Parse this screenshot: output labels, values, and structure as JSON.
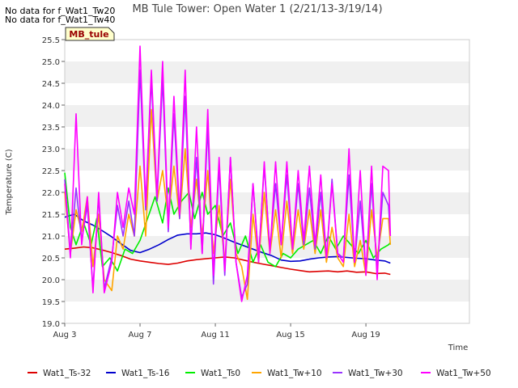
{
  "notes": [
    "No data for f_Wat1_Tw20",
    "No data for f_Wat1_Tw40"
  ],
  "badge": "MB_tule",
  "chart_data": {
    "type": "line",
    "title": "MB Tule Tower: Open Water 1 (2/21/13-3/19/14)",
    "xlabel": "Time",
    "ylabel": "Temperature (C)",
    "xlim": [
      0,
      21.5
    ],
    "ylim": [
      19.0,
      25.5
    ],
    "x_ticks": [
      {
        "x": 0,
        "label": "Aug 3"
      },
      {
        "x": 4,
        "label": "Aug 7"
      },
      {
        "x": 8,
        "label": "Aug 11"
      },
      {
        "x": 12,
        "label": "Aug 15"
      },
      {
        "x": 16,
        "label": "Aug 19"
      }
    ],
    "y_ticks": [
      19.0,
      19.5,
      20.0,
      20.5,
      21.0,
      21.5,
      22.0,
      22.5,
      23.0,
      23.5,
      24.0,
      24.5,
      25.0,
      25.5
    ],
    "grid": "horizontal-bands",
    "legend_position": "bottom",
    "series": [
      {
        "name": "Wat1_Ts-32",
        "color": "#dd0000",
        "x": [
          0,
          0.5,
          1,
          1.5,
          2,
          2.5,
          3,
          3.5,
          4,
          4.5,
          5,
          5.5,
          6,
          6.5,
          7,
          7.5,
          8,
          8.5,
          9,
          9.5,
          10,
          10.5,
          11,
          11.5,
          12,
          12.5,
          13,
          13.5,
          14,
          14.5,
          15,
          15.5,
          16,
          16.5,
          17,
          17.3
        ],
        "y": [
          20.7,
          20.72,
          20.75,
          20.73,
          20.68,
          20.62,
          20.55,
          20.47,
          20.43,
          20.4,
          20.37,
          20.35,
          20.38,
          20.43,
          20.46,
          20.48,
          20.5,
          20.52,
          20.5,
          20.45,
          20.4,
          20.36,
          20.32,
          20.28,
          20.24,
          20.21,
          20.18,
          20.19,
          20.2,
          20.18,
          20.2,
          20.17,
          20.18,
          20.14,
          20.15,
          20.12
        ]
      },
      {
        "name": "Wat1_Ts-16",
        "color": "#0000cc",
        "x": [
          0,
          0.5,
          1,
          1.5,
          2,
          2.5,
          3,
          3.5,
          4,
          4.5,
          5,
          5.5,
          6,
          6.5,
          7,
          7.5,
          8,
          8.5,
          9,
          9.5,
          10,
          10.5,
          11,
          11.5,
          12,
          12.5,
          13,
          13.5,
          14,
          14.5,
          15,
          15.5,
          16,
          16.5,
          17,
          17.3
        ],
        "y": [
          21.43,
          21.5,
          21.35,
          21.25,
          21.12,
          20.98,
          20.82,
          20.67,
          20.62,
          20.7,
          20.8,
          20.92,
          21.02,
          21.05,
          21.05,
          21.07,
          21.03,
          20.95,
          20.86,
          20.78,
          20.7,
          20.62,
          20.55,
          20.45,
          20.42,
          20.43,
          20.47,
          20.5,
          20.52,
          20.53,
          20.51,
          20.49,
          20.48,
          20.45,
          20.43,
          20.38
        ]
      },
      {
        "name": "Wat1_Ts0",
        "color": "#00ee00",
        "x": [
          0,
          0.3,
          0.6,
          1,
          1.4,
          1.7,
          2,
          2.4,
          2.8,
          3.2,
          3.6,
          4,
          4.4,
          4.8,
          5.2,
          5.5,
          5.8,
          6.2,
          6.6,
          6.9,
          7.3,
          7.6,
          8,
          8.4,
          8.8,
          9.2,
          9.6,
          10,
          10.4,
          10.8,
          11.2,
          11.6,
          12,
          12.4,
          12.8,
          13.2,
          13.6,
          14,
          14.4,
          14.8,
          15.2,
          15.6,
          16,
          16.4,
          16.8,
          17.2,
          17.3
        ],
        "y": [
          22.45,
          21.2,
          20.8,
          21.3,
          20.8,
          21.4,
          20.3,
          20.5,
          20.2,
          20.7,
          20.6,
          20.9,
          21.4,
          21.9,
          21.3,
          22.1,
          21.5,
          21.8,
          22.0,
          21.4,
          22.0,
          21.5,
          21.7,
          21.0,
          21.3,
          20.6,
          21.0,
          20.4,
          20.8,
          20.4,
          20.3,
          20.6,
          20.5,
          20.7,
          20.8,
          20.9,
          20.6,
          21.0,
          20.7,
          21.0,
          20.8,
          20.6,
          20.9,
          20.5,
          20.7,
          20.8,
          20.85
        ]
      },
      {
        "name": "Wat1_Tw+10",
        "color": "#ffa500",
        "x": [
          0,
          0.3,
          0.6,
          0.9,
          1.2,
          1.5,
          1.8,
          2.1,
          2.5,
          2.8,
          3.1,
          3.4,
          3.7,
          4,
          4.3,
          4.6,
          4.9,
          5.2,
          5.5,
          5.8,
          6.1,
          6.4,
          6.7,
          7,
          7.3,
          7.6,
          7.9,
          8.2,
          8.5,
          8.8,
          9.1,
          9.4,
          9.7,
          10,
          10.3,
          10.6,
          10.9,
          11.2,
          11.5,
          11.8,
          12.1,
          12.4,
          12.7,
          13,
          13.3,
          13.6,
          13.9,
          14.2,
          14.5,
          14.8,
          15.1,
          15.4,
          15.7,
          16,
          16.3,
          16.6,
          16.9,
          17.2,
          17.3
        ],
        "y": [
          22.0,
          20.6,
          21.6,
          21.1,
          21.9,
          20.3,
          21.5,
          20.0,
          19.75,
          21.0,
          20.7,
          21.5,
          21.0,
          22.6,
          21.0,
          23.9,
          21.8,
          22.5,
          21.4,
          22.6,
          21.4,
          23.0,
          21.2,
          22.3,
          21.0,
          22.5,
          20.6,
          21.7,
          20.4,
          22.3,
          20.6,
          20.3,
          19.55,
          21.5,
          20.4,
          22.0,
          20.6,
          21.6,
          20.5,
          21.8,
          20.6,
          21.6,
          20.7,
          21.6,
          20.6,
          21.6,
          20.4,
          21.2,
          20.5,
          20.3,
          21.5,
          20.3,
          20.9,
          20.1,
          21.6,
          20.5,
          21.4,
          21.4,
          20.8
        ]
      },
      {
        "name": "Wat1_Tw+30",
        "color": "#9933ff",
        "x": [
          0,
          0.3,
          0.6,
          0.9,
          1.2,
          1.5,
          1.8,
          2.1,
          2.5,
          2.8,
          3.1,
          3.4,
          3.7,
          4,
          4.3,
          4.6,
          4.9,
          5.2,
          5.5,
          5.8,
          6.1,
          6.4,
          6.7,
          7,
          7.3,
          7.6,
          7.9,
          8.2,
          8.5,
          8.8,
          9.1,
          9.4,
          9.7,
          10,
          10.3,
          10.6,
          10.9,
          11.2,
          11.5,
          11.8,
          12.1,
          12.4,
          12.7,
          13,
          13.3,
          13.6,
          13.9,
          14.2,
          14.5,
          14.8,
          15.1,
          15.4,
          15.7,
          16,
          16.3,
          16.6,
          16.9,
          17.2,
          17.3
        ],
        "y": [
          22.3,
          20.6,
          22.1,
          20.9,
          21.7,
          19.8,
          21.9,
          19.8,
          20.5,
          21.7,
          21.0,
          21.8,
          21.0,
          24.8,
          21.6,
          24.6,
          21.8,
          24.6,
          21.1,
          23.8,
          21.4,
          24.2,
          20.8,
          22.8,
          20.6,
          23.5,
          19.9,
          22.6,
          20.1,
          22.8,
          20.4,
          19.6,
          19.9,
          22.2,
          20.5,
          22.6,
          20.7,
          22.2,
          20.8,
          22.4,
          20.7,
          22.2,
          20.8,
          22.1,
          20.7,
          22.0,
          20.5,
          22.3,
          20.6,
          20.5,
          22.4,
          20.4,
          21.8,
          20.2,
          22.2,
          20.2,
          22.0,
          21.7,
          21.0
        ]
      },
      {
        "name": "Wat1_Tw+50",
        "color": "#ff00ff",
        "x": [
          0,
          0.3,
          0.6,
          0.9,
          1.2,
          1.5,
          1.8,
          2.1,
          2.5,
          2.8,
          3.1,
          3.4,
          3.7,
          4,
          4.3,
          4.6,
          4.9,
          5.2,
          5.5,
          5.8,
          6.1,
          6.4,
          6.7,
          7,
          7.3,
          7.6,
          7.9,
          8.2,
          8.5,
          8.8,
          9.1,
          9.4,
          9.7,
          10,
          10.3,
          10.6,
          10.9,
          11.2,
          11.5,
          11.8,
          12.1,
          12.4,
          12.7,
          13,
          13.3,
          13.6,
          13.9,
          14.2,
          14.5,
          14.8,
          15.1,
          15.4,
          15.7,
          16,
          16.3,
          16.6,
          16.9,
          17.2,
          17.3
        ],
        "y": [
          22.2,
          20.5,
          23.8,
          20.8,
          21.9,
          19.7,
          22.0,
          19.7,
          20.4,
          22.0,
          21.2,
          22.1,
          21.5,
          25.35,
          21.7,
          24.8,
          21.9,
          25.0,
          21.2,
          24.2,
          21.5,
          24.8,
          20.7,
          23.5,
          20.6,
          23.9,
          20.1,
          22.8,
          20.2,
          22.8,
          20.4,
          19.5,
          20.1,
          22.2,
          20.4,
          22.7,
          20.6,
          22.7,
          20.8,
          22.7,
          20.7,
          22.5,
          20.9,
          22.6,
          20.8,
          22.4,
          20.5,
          22.2,
          20.6,
          20.4,
          23.0,
          20.4,
          22.5,
          20.1,
          22.6,
          20.0,
          22.6,
          22.5,
          21.0
        ]
      }
    ]
  }
}
